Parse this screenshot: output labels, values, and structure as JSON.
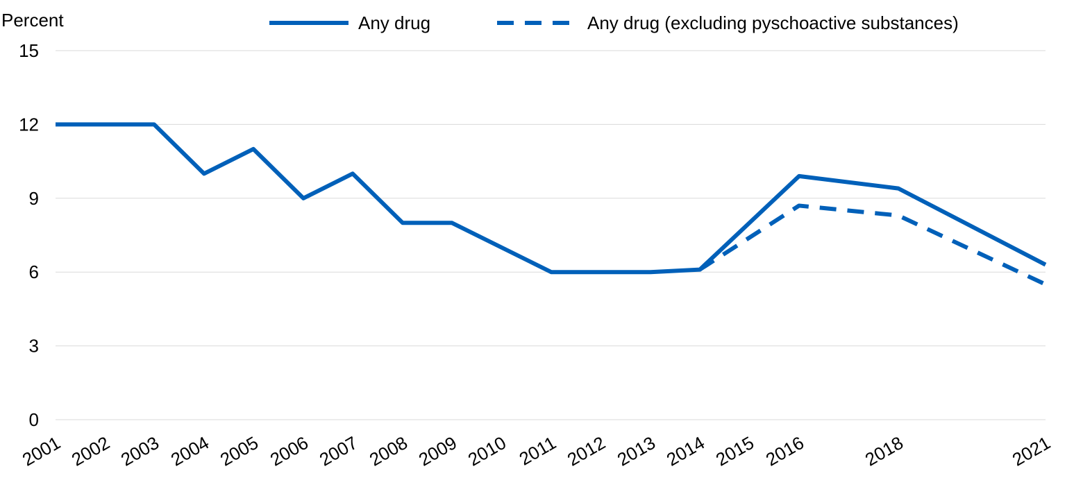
{
  "chart_data": {
    "type": "line",
    "ylabel": "Percent",
    "ylim": [
      0,
      15
    ],
    "yticks": [
      0,
      3,
      6,
      9,
      12,
      15
    ],
    "x": [
      "2001",
      "2002",
      "2003",
      "2004",
      "2005",
      "2006",
      "2007",
      "2008",
      "2009",
      "2010",
      "2011",
      "2012",
      "2013",
      "2014",
      "2015",
      "2016",
      "2018",
      "2021"
    ],
    "grid": "horizontal",
    "legend_position": "top",
    "series": [
      {
        "name": "Any drug",
        "style": "solid",
        "color": "#0060b9",
        "points": [
          {
            "x": "2001",
            "y": 12.0
          },
          {
            "x": "2003",
            "y": 12.0
          },
          {
            "x": "2004",
            "y": 10.0
          },
          {
            "x": "2005",
            "y": 11.0
          },
          {
            "x": "2006",
            "y": 9.0
          },
          {
            "x": "2007",
            "y": 10.0
          },
          {
            "x": "2008",
            "y": 8.0
          },
          {
            "x": "2009",
            "y": 8.0
          },
          {
            "x": "2011",
            "y": 6.0
          },
          {
            "x": "2012",
            "y": 6.0
          },
          {
            "x": "2013",
            "y": 6.0
          },
          {
            "x": "2014",
            "y": 6.1
          },
          {
            "x": "2016",
            "y": 9.9
          },
          {
            "x": "2018",
            "y": 9.4
          },
          {
            "x": "2021",
            "y": 6.3
          }
        ]
      },
      {
        "name": "Any drug (excluding pyschoactive substances)",
        "style": "dashed",
        "color": "#0060b9",
        "points": [
          {
            "x": "2014",
            "y": 6.1
          },
          {
            "x": "2016",
            "y": 8.7
          },
          {
            "x": "2018",
            "y": 8.3
          },
          {
            "x": "2021",
            "y": 5.5
          }
        ]
      }
    ]
  }
}
